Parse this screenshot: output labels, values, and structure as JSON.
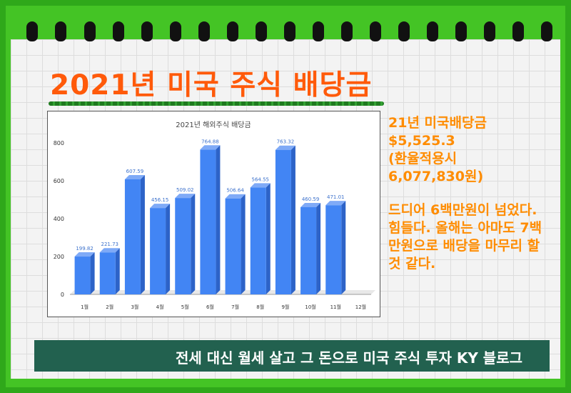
{
  "page": {
    "title": "2021년 미국 주식 배당금",
    "summary_text": "21년 미국배당금\n$5,525.3\n(환율적용시\n6,077,830원)",
    "comment_text": "드디어 6백만원이 넘었다. 힘들다. 올해는 아마도 7백만원으로 배당을 마무리 할 것 같다.",
    "banner_text": "전세 대신 월세 살고 그 돈으로 미국 주식 투자 KY 블로그"
  },
  "colors": {
    "background_green": "#37b71f",
    "title_orange": "#ff5a0a",
    "side_text_orange": "#ff8c00",
    "bar_blue": "#4285f4",
    "banner_green": "#22614f"
  },
  "chart_data": {
    "type": "bar",
    "title": "2021년 해외주식 배당금",
    "categories": [
      "1월",
      "2월",
      "3월",
      "4월",
      "5월",
      "6월",
      "7월",
      "8월",
      "9월",
      "10월",
      "11월",
      "12월"
    ],
    "values": [
      199.82,
      221.73,
      607.59,
      456.15,
      509.02,
      764.88,
      506.64,
      564.55,
      763.32,
      460.59,
      471.01,
      null
    ],
    "data_labels": [
      "199.82",
      "221.73",
      "607.59",
      "456.15",
      "509.02",
      "764.88",
      "506.64",
      "564.55",
      "763.32",
      "460.59",
      "471.01",
      ""
    ],
    "xlabel": "",
    "ylabel": "",
    "ylim": [
      0,
      800
    ],
    "yticks": [
      0,
      200,
      400,
      600,
      800
    ],
    "grid": false,
    "legend": "none",
    "style": "3d"
  }
}
